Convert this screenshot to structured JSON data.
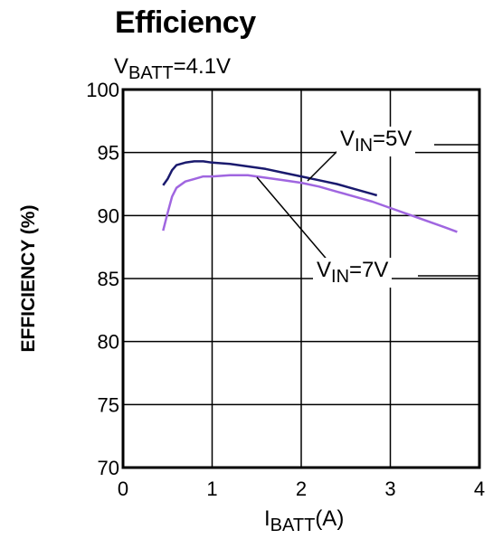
{
  "chart_data": {
    "type": "line",
    "title": "Efficiency",
    "subtitle_main": "V",
    "subtitle_sub": "BATT",
    "subtitle_rest": "=4.1V",
    "xlabel_main": "I",
    "xlabel_sub": "BATT",
    "xlabel_rest": "(A)",
    "ylabel": "EFFICIENCY (%)",
    "xlim": [
      0,
      4
    ],
    "ylim": [
      70,
      100
    ],
    "xticks": [
      "0",
      "1",
      "2",
      "3",
      "4"
    ],
    "yticks": [
      "70",
      "75",
      "80",
      "85",
      "90",
      "95",
      "100"
    ],
    "grid": true,
    "series": [
      {
        "name_main": "V",
        "name_sub": "IN",
        "name_rest": "=5V",
        "color": "#1a1a6e",
        "x": [
          0.45,
          0.5,
          0.55,
          0.6,
          0.7,
          0.8,
          0.9,
          1.0,
          1.2,
          1.4,
          1.6,
          1.8,
          2.0,
          2.2,
          2.4,
          2.6,
          2.8,
          2.85
        ],
        "y": [
          92.4,
          92.9,
          93.6,
          94.0,
          94.2,
          94.3,
          94.3,
          94.2,
          94.1,
          93.9,
          93.7,
          93.4,
          93.1,
          92.8,
          92.5,
          92.1,
          91.7,
          91.6
        ]
      },
      {
        "name_main": "V",
        "name_sub": "IN",
        "name_rest": "=7V",
        "color": "#a066e0",
        "x": [
          0.45,
          0.5,
          0.55,
          0.6,
          0.7,
          0.8,
          0.9,
          1.0,
          1.2,
          1.4,
          1.6,
          1.8,
          2.0,
          2.2,
          2.4,
          2.6,
          2.8,
          3.0,
          3.2,
          3.4,
          3.6,
          3.75
        ],
        "y": [
          88.8,
          90.2,
          91.5,
          92.2,
          92.7,
          92.9,
          93.1,
          93.1,
          93.2,
          93.2,
          93.0,
          92.8,
          92.6,
          92.3,
          91.9,
          91.5,
          91.1,
          90.6,
          90.1,
          89.6,
          89.1,
          88.7
        ]
      }
    ]
  }
}
